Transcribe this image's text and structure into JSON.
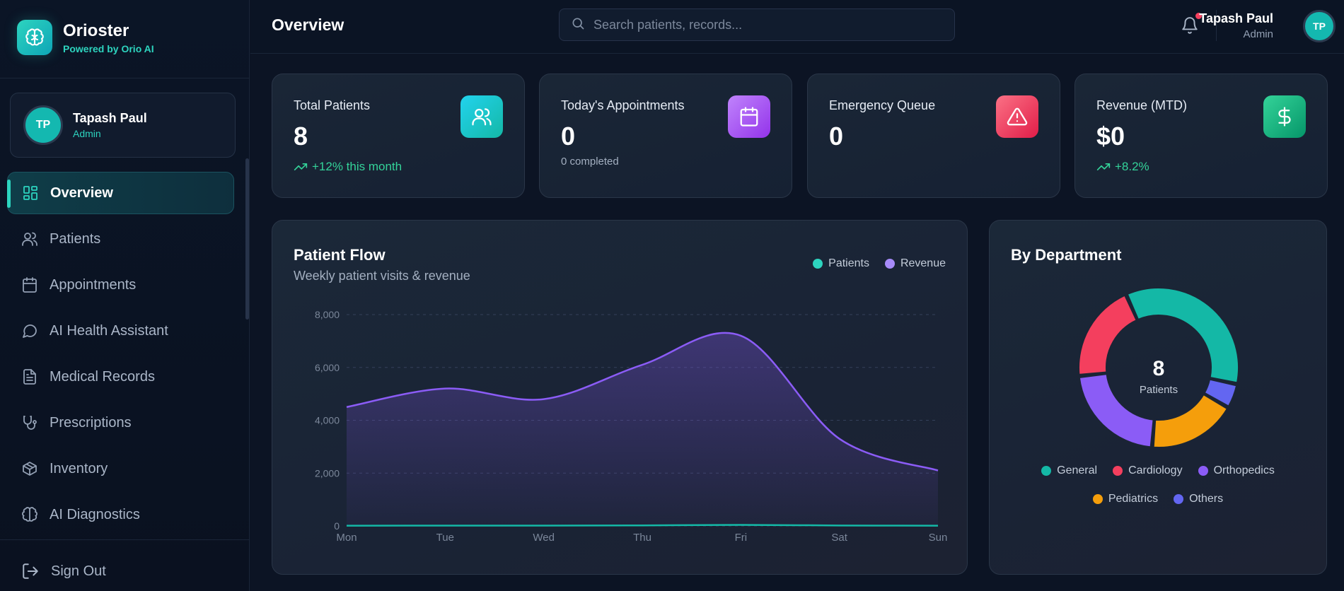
{
  "brand": {
    "name": "Orioster",
    "subtitle": "Powered by Orio AI"
  },
  "user": {
    "name": "Tapash Paul",
    "role": "Admin",
    "initials": "TP"
  },
  "nav": [
    {
      "label": "Overview",
      "icon": "layout-grid-icon",
      "active": true
    },
    {
      "label": "Patients",
      "icon": "users-icon"
    },
    {
      "label": "Appointments",
      "icon": "calendar-icon"
    },
    {
      "label": "AI Health Assistant",
      "icon": "chat-bubble-icon"
    },
    {
      "label": "Medical Records",
      "icon": "file-text-icon"
    },
    {
      "label": "Prescriptions",
      "icon": "stethoscope-icon"
    },
    {
      "label": "Inventory",
      "icon": "package-icon"
    },
    {
      "label": "AI Diagnostics",
      "icon": "brain-icon"
    }
  ],
  "signout": {
    "label": "Sign Out",
    "icon": "log-out-icon"
  },
  "header": {
    "title": "Overview",
    "search_placeholder": "Search patients, records..."
  },
  "stats": [
    {
      "label": "Total Patients",
      "value": "8",
      "trend": "+12% this month",
      "icon": "users-icon",
      "color": "#14b8c4"
    },
    {
      "label": "Today's Appointments",
      "value": "0",
      "sub": "0 completed",
      "icon": "calendar-icon",
      "color": "#a855f7"
    },
    {
      "label": "Emergency Queue",
      "value": "0",
      "icon": "alert-triangle-icon",
      "color": "#f43f5e"
    },
    {
      "label": "Revenue (MTD)",
      "value": "$0",
      "trend": "+8.2%",
      "icon": "dollar-icon",
      "color": "#10b981"
    }
  ],
  "patient_flow": {
    "title": "Patient Flow",
    "subtitle": "Weekly patient visits & revenue",
    "legend": [
      {
        "name": "Patients",
        "color": "#2dd4bf"
      },
      {
        "name": "Revenue",
        "color": "#a78bfa"
      }
    ]
  },
  "department": {
    "title": "By Department",
    "center_value": "8",
    "center_label": "Patients"
  },
  "chart_data": [
    {
      "type": "area",
      "x": [
        "Mon",
        "Tue",
        "Wed",
        "Thu",
        "Fri",
        "Sat",
        "Sun"
      ],
      "yticks": [
        "0",
        "2,000",
        "4,000",
        "6,000",
        "8,000"
      ],
      "ylim": [
        0,
        8000
      ],
      "grid": true,
      "legend_position": "top-right",
      "series": [
        {
          "name": "Revenue",
          "values": [
            4500,
            5200,
            4800,
            6100,
            7200,
            3300,
            2100
          ],
          "color": "#8b5cf6"
        },
        {
          "name": "Patients",
          "values": [
            10,
            15,
            12,
            20,
            40,
            18,
            10
          ],
          "color": "#14b8a6"
        }
      ]
    },
    {
      "type": "pie",
      "donut": true,
      "legend_position": "bottom",
      "slices": [
        {
          "name": "General",
          "value": 35,
          "color": "#14b8a6"
        },
        {
          "name": "Others",
          "value": 5,
          "color": "#6366f1"
        },
        {
          "name": "Pediatrics",
          "value": 18,
          "color": "#f59e0b"
        },
        {
          "name": "Orthopedics",
          "value": 22,
          "color": "#8b5cf6"
        },
        {
          "name": "Cardiology",
          "value": 20,
          "color": "#f43f5e"
        }
      ],
      "legend_order": [
        "General",
        "Cardiology",
        "Orthopedics",
        "Pediatrics",
        "Others"
      ]
    }
  ]
}
